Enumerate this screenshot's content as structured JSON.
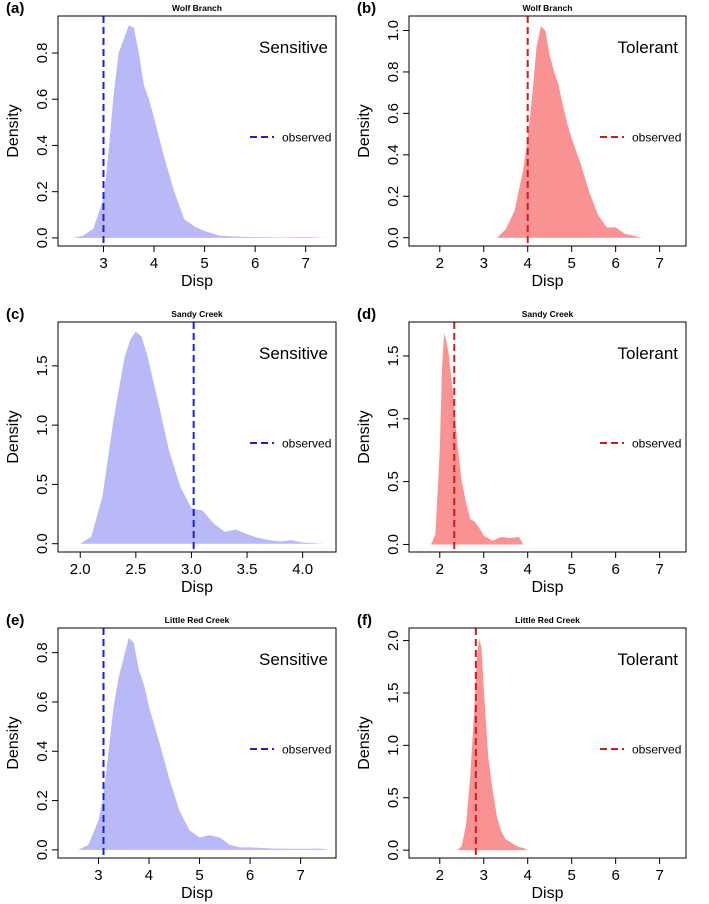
{
  "figure": {
    "panels": [
      {
        "tag": "(a)",
        "site": "Wolf Branch",
        "group": "Sensitive"
      },
      {
        "tag": "(b)",
        "site": "Wolf Branch",
        "group": "Tolerant"
      },
      {
        "tag": "(c)",
        "site": "Sandy Creek",
        "group": "Sensitive"
      },
      {
        "tag": "(d)",
        "site": "Sandy Creek",
        "group": "Tolerant"
      },
      {
        "tag": "(e)",
        "site": "Little Red Creek",
        "group": "Sensitive"
      },
      {
        "tag": "(f)",
        "site": "Little Red Creek",
        "group": "Tolerant"
      }
    ],
    "colors": {
      "sensitive_fill": "#b9b9f7",
      "sensitive_line": "#1f1fd6",
      "tolerant_fill": "#f99393",
      "tolerant_line": "#d31a1a",
      "axis": "#000000"
    }
  },
  "chart_data": [
    {
      "type": "area",
      "panel": "(a)",
      "title": "Wolf Branch",
      "annotation": "Sensitive",
      "xlabel": "Disp",
      "ylabel": "Density",
      "xlim": [
        2.1,
        7.6
      ],
      "ylim": [
        -0.035,
        0.96
      ],
      "xticks": [
        3,
        4,
        5,
        6,
        7
      ],
      "xtick_labels": [
        "3",
        "4",
        "5",
        "6",
        "7"
      ],
      "yticks": [
        0.0,
        0.2,
        0.4,
        0.6,
        0.8
      ],
      "ytick_labels": [
        "0.0",
        "0.2",
        "0.4",
        "0.6",
        "0.8"
      ],
      "observed": 3.0,
      "legend": "observed",
      "series_color_key": "sensitive",
      "x": [
        2.4,
        2.6,
        2.8,
        3.0,
        3.1,
        3.2,
        3.3,
        3.4,
        3.5,
        3.6,
        3.7,
        3.8,
        3.9,
        4.0,
        4.2,
        4.4,
        4.6,
        4.8,
        5.0,
        5.3,
        5.6,
        6.0,
        6.5,
        7.0,
        7.4
      ],
      "y": [
        0.0,
        0.01,
        0.04,
        0.17,
        0.37,
        0.62,
        0.8,
        0.86,
        0.92,
        0.91,
        0.8,
        0.66,
        0.6,
        0.52,
        0.35,
        0.2,
        0.08,
        0.05,
        0.03,
        0.01,
        0.006,
        0.004,
        0.002,
        0.004,
        0.0
      ]
    },
    {
      "type": "area",
      "panel": "(b)",
      "title": "Wolf Branch",
      "annotation": "Tolerant",
      "xlabel": "Disp",
      "ylabel": "Density",
      "xlim": [
        1.3,
        7.6
      ],
      "ylim": [
        -0.04,
        1.07
      ],
      "xticks": [
        2,
        3,
        4,
        5,
        6,
        7
      ],
      "xtick_labels": [
        "2",
        "3",
        "4",
        "5",
        "6",
        "7"
      ],
      "yticks": [
        0.0,
        0.2,
        0.4,
        0.6,
        0.8,
        1.0
      ],
      "ytick_labels": [
        "0.0",
        "0.2",
        "0.4",
        "0.6",
        "0.8",
        "1.0"
      ],
      "observed": 4.0,
      "legend": "observed",
      "series_color_key": "tolerant",
      "x": [
        3.3,
        3.5,
        3.7,
        3.9,
        4.0,
        4.1,
        4.2,
        4.3,
        4.4,
        4.5,
        4.6,
        4.7,
        4.8,
        4.9,
        5.0,
        5.2,
        5.4,
        5.6,
        5.8,
        6.0,
        6.2,
        6.4,
        6.6
      ],
      "y": [
        0.0,
        0.04,
        0.13,
        0.33,
        0.48,
        0.68,
        0.92,
        1.02,
        1.0,
        0.88,
        0.8,
        0.74,
        0.64,
        0.55,
        0.48,
        0.36,
        0.22,
        0.11,
        0.05,
        0.05,
        0.02,
        0.01,
        0.0
      ]
    },
    {
      "type": "area",
      "panel": "(c)",
      "title": "Sandy Creek",
      "annotation": "Sensitive",
      "xlabel": "Disp",
      "ylabel": "Density",
      "xlim": [
        1.8,
        4.3
      ],
      "ylim": [
        -0.07,
        1.87
      ],
      "xticks": [
        2.0,
        2.5,
        3.0,
        3.5,
        4.0
      ],
      "xtick_labels": [
        "2.0",
        "2.5",
        "3.0",
        "3.5",
        "4.0"
      ],
      "yticks": [
        0.0,
        0.5,
        1.0,
        1.5
      ],
      "ytick_labels": [
        "0.0",
        "0.5",
        "1.0",
        "1.5"
      ],
      "observed": 3.02,
      "legend": "observed",
      "series_color_key": "sensitive",
      "x": [
        2.0,
        2.1,
        2.2,
        2.3,
        2.4,
        2.45,
        2.5,
        2.55,
        2.6,
        2.7,
        2.8,
        2.9,
        3.0,
        3.1,
        3.2,
        3.3,
        3.4,
        3.5,
        3.6,
        3.7,
        3.8,
        3.9,
        4.0,
        4.1,
        4.2
      ],
      "y": [
        0.0,
        0.06,
        0.4,
        1.05,
        1.58,
        1.72,
        1.79,
        1.75,
        1.6,
        1.2,
        0.78,
        0.48,
        0.3,
        0.28,
        0.17,
        0.1,
        0.12,
        0.08,
        0.05,
        0.03,
        0.02,
        0.03,
        0.01,
        0.005,
        0.0
      ]
    },
    {
      "type": "area",
      "panel": "(d)",
      "title": "Sandy Creek",
      "annotation": "Tolerant",
      "xlabel": "Disp",
      "ylabel": "Density",
      "xlim": [
        1.3,
        7.6
      ],
      "ylim": [
        -0.06,
        1.77
      ],
      "xticks": [
        2,
        3,
        4,
        5,
        6,
        7
      ],
      "xtick_labels": [
        "2",
        "3",
        "4",
        "5",
        "6",
        "7"
      ],
      "yticks": [
        0.0,
        0.5,
        1.0,
        1.5
      ],
      "ytick_labels": [
        "0.0",
        "0.5",
        "1.0",
        "1.5"
      ],
      "observed": 2.33,
      "legend": "observed",
      "series_color_key": "tolerant",
      "x": [
        1.8,
        1.9,
        2.0,
        2.05,
        2.1,
        2.15,
        2.2,
        2.3,
        2.4,
        2.5,
        2.6,
        2.7,
        2.8,
        2.9,
        3.0,
        3.2,
        3.4,
        3.6,
        3.8,
        3.9
      ],
      "y": [
        0.0,
        0.08,
        0.75,
        1.4,
        1.68,
        1.62,
        1.52,
        1.2,
        0.8,
        0.5,
        0.33,
        0.2,
        0.18,
        0.13,
        0.07,
        0.03,
        0.06,
        0.05,
        0.06,
        0.0
      ]
    },
    {
      "type": "area",
      "panel": "(e)",
      "title": "Little Red Creek",
      "annotation": "Sensitive",
      "xlabel": "Disp",
      "ylabel": "Density",
      "xlim": [
        2.2,
        7.7
      ],
      "ylim": [
        -0.033,
        0.9
      ],
      "xticks": [
        3,
        4,
        5,
        6,
        7
      ],
      "xtick_labels": [
        "3",
        "4",
        "5",
        "6",
        "7"
      ],
      "yticks": [
        0.0,
        0.2,
        0.4,
        0.6,
        0.8
      ],
      "ytick_labels": [
        "0.0",
        "0.2",
        "0.4",
        "0.6",
        "0.8"
      ],
      "observed": 3.1,
      "legend": "observed",
      "series_color_key": "sensitive",
      "x": [
        2.6,
        2.8,
        3.0,
        3.1,
        3.2,
        3.3,
        3.4,
        3.5,
        3.6,
        3.7,
        3.8,
        3.9,
        4.0,
        4.2,
        4.4,
        4.6,
        4.8,
        5.0,
        5.2,
        5.4,
        5.6,
        5.8,
        6.0,
        6.5,
        7.0,
        7.4,
        7.6
      ],
      "y": [
        0.0,
        0.02,
        0.12,
        0.22,
        0.4,
        0.58,
        0.7,
        0.78,
        0.86,
        0.84,
        0.73,
        0.67,
        0.58,
        0.44,
        0.29,
        0.16,
        0.08,
        0.05,
        0.06,
        0.05,
        0.02,
        0.01,
        0.01,
        0.005,
        0.004,
        0.005,
        0.0
      ]
    },
    {
      "type": "area",
      "panel": "(f)",
      "title": "Little Red Creek",
      "annotation": "Tolerant",
      "xlabel": "Disp",
      "ylabel": "Density",
      "xlim": [
        1.3,
        7.6
      ],
      "ylim": [
        -0.075,
        2.12
      ],
      "xticks": [
        2,
        3,
        4,
        5,
        6,
        7
      ],
      "xtick_labels": [
        "2",
        "3",
        "4",
        "5",
        "6",
        "7"
      ],
      "yticks": [
        0.0,
        0.5,
        1.0,
        1.5,
        2.0
      ],
      "ytick_labels": [
        "0.0",
        "0.5",
        "1.0",
        "1.5",
        "2.0"
      ],
      "observed": 2.82,
      "legend": "observed",
      "series_color_key": "tolerant",
      "x": [
        2.4,
        2.5,
        2.6,
        2.7,
        2.8,
        2.85,
        2.9,
        2.95,
        3.0,
        3.1,
        3.2,
        3.3,
        3.4,
        3.5,
        3.6,
        3.7,
        3.8,
        3.9,
        4.0
      ],
      "y": [
        0.0,
        0.04,
        0.25,
        0.75,
        1.45,
        1.88,
        2.02,
        1.92,
        1.55,
        0.9,
        0.58,
        0.32,
        0.18,
        0.1,
        0.08,
        0.05,
        0.03,
        0.02,
        0.0
      ]
    }
  ]
}
